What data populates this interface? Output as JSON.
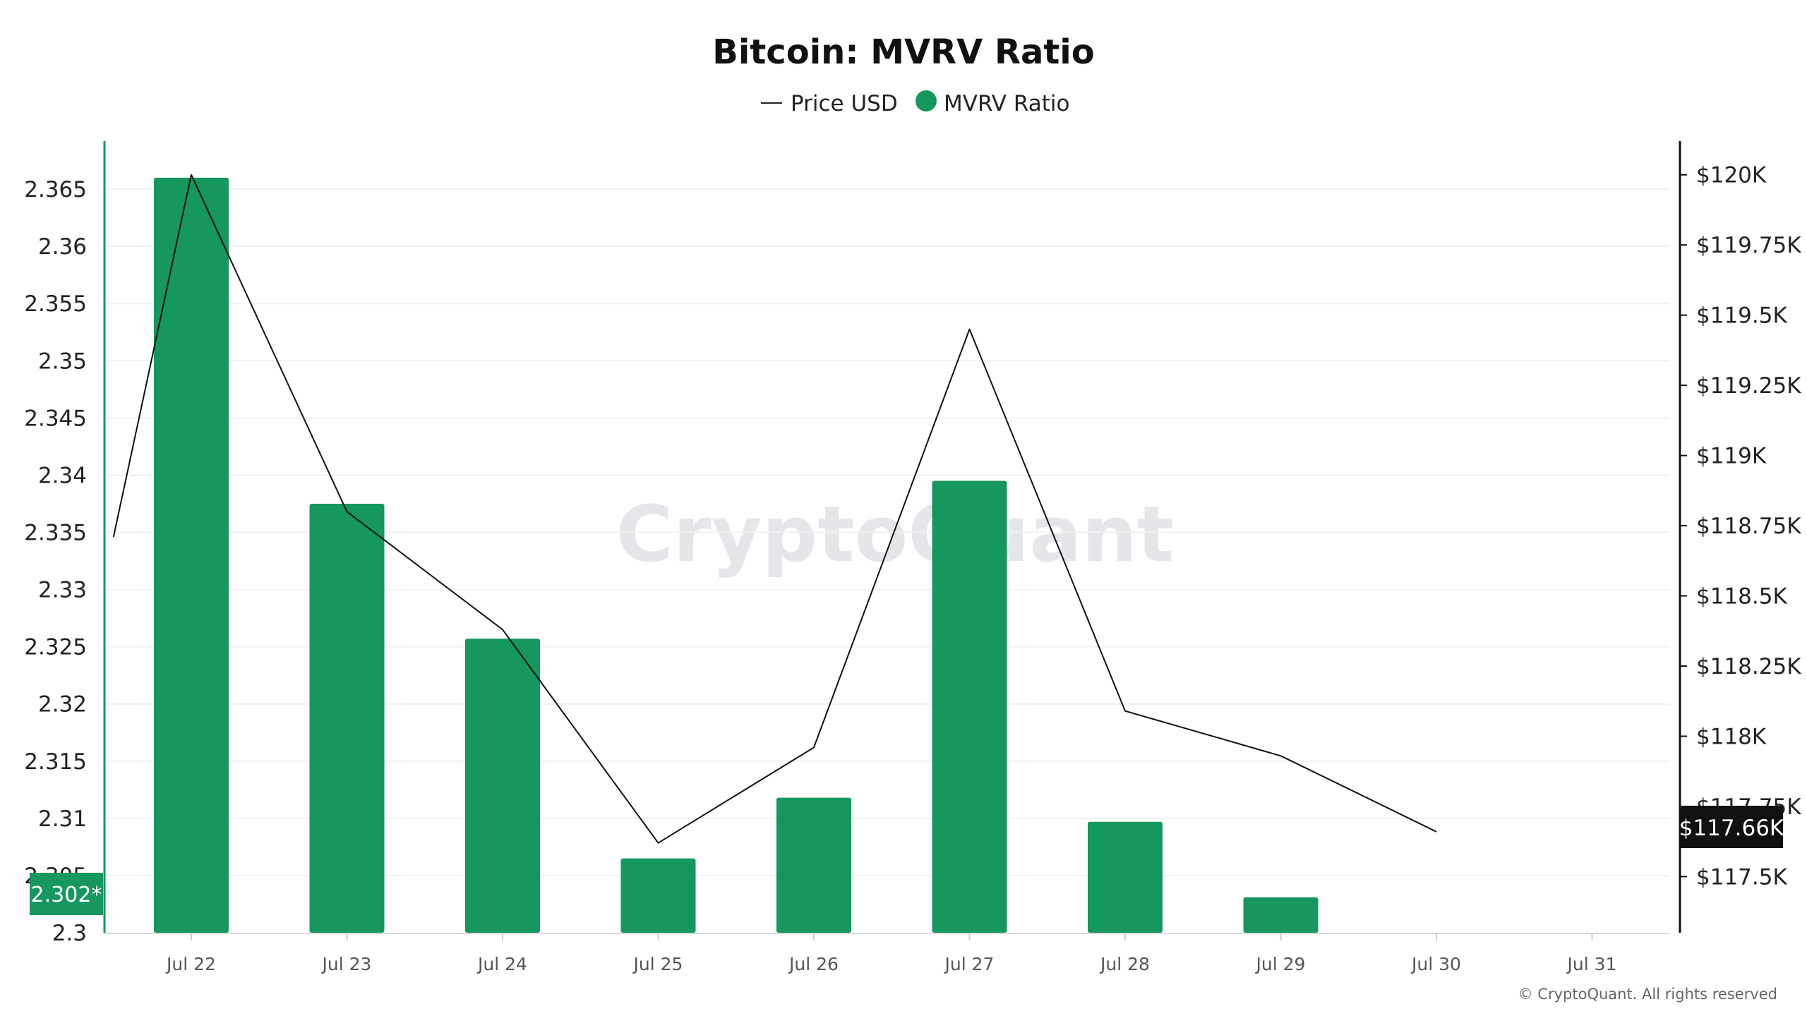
{
  "chart_data": {
    "type": "bar",
    "title": "Bitcoin: MVRV Ratio",
    "categories": [
      "Jul 22",
      "Jul 23",
      "Jul 24",
      "Jul 25",
      "Jul 26",
      "Jul 27",
      "Jul 28",
      "Jul 29",
      "Jul 30",
      "Jul 31"
    ],
    "legend": [
      "Price USD",
      "MVRV Ratio"
    ],
    "legend_position": "top-center",
    "series": [
      {
        "name": "MVRV Ratio",
        "type": "bar",
        "axis": "left",
        "color": "#15975e",
        "values": [
          2.366,
          2.3375,
          2.3257,
          2.3065,
          2.3118,
          2.3395,
          2.3097,
          2.3031,
          null,
          null
        ]
      },
      {
        "name": "Price USD",
        "type": "line",
        "axis": "right",
        "color": "#111111",
        "x": [
          21.5,
          22,
          23,
          24,
          25,
          26,
          27,
          28,
          29,
          30
        ],
        "values": [
          118710,
          120000,
          118800,
          118380,
          117620,
          117960,
          119450,
          118090,
          117930,
          117660
        ]
      }
    ],
    "left_axis": {
      "ylim": [
        2.3,
        2.3692
      ],
      "ticks": [
        "2.3",
        "2.305",
        "2.31",
        "2.315",
        "2.32",
        "2.325",
        "2.33",
        "2.335",
        "2.34",
        "2.345",
        "2.35",
        "2.355",
        "2.36",
        "2.365"
      ],
      "current_value_label": "2.302*"
    },
    "right_axis": {
      "ylim": [
        117300,
        120120
      ],
      "ticks": [
        "$117.5K",
        "$117.75K",
        "$118K",
        "$118.25K",
        "$118.5K",
        "$118.75K",
        "$119K",
        "$119.25K",
        "$119.5K",
        "$119.75K",
        "$120K"
      ],
      "current_value_label": "$117.66K"
    },
    "grid": true,
    "watermark": "CryptoQuant",
    "copyright": "© CryptoQuant. All rights reserved"
  }
}
